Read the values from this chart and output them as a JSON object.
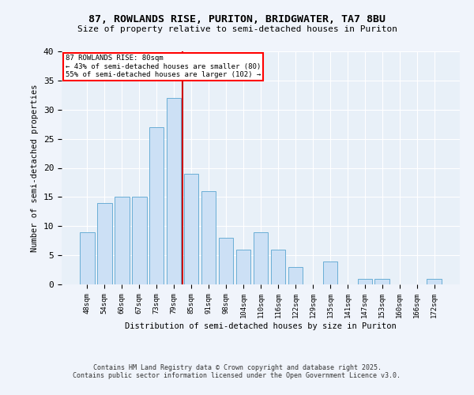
{
  "title1": "87, ROWLANDS RISE, PURITON, BRIDGWATER, TA7 8BU",
  "title2": "Size of property relative to semi-detached houses in Puriton",
  "xlabel": "Distribution of semi-detached houses by size in Puriton",
  "ylabel": "Number of semi-detached properties",
  "categories": [
    "48sqm",
    "54sqm",
    "60sqm",
    "67sqm",
    "73sqm",
    "79sqm",
    "85sqm",
    "91sqm",
    "98sqm",
    "104sqm",
    "110sqm",
    "116sqm",
    "122sqm",
    "129sqm",
    "135sqm",
    "141sqm",
    "147sqm",
    "153sqm",
    "160sqm",
    "166sqm",
    "172sqm"
  ],
  "values": [
    9,
    14,
    15,
    15,
    27,
    32,
    19,
    16,
    8,
    6,
    9,
    6,
    3,
    0,
    4,
    0,
    1,
    1,
    0,
    0,
    1
  ],
  "bar_color": "#cce0f5",
  "bar_edge_color": "#6aaed6",
  "vline_index": 5.5,
  "vline_color": "#cc0000",
  "annotation_title": "87 ROWLANDS RISE: 80sqm",
  "annotation_line1": "← 43% of semi-detached houses are smaller (80)",
  "annotation_line2": "55% of semi-detached houses are larger (102) →",
  "ylim": [
    0,
    40
  ],
  "yticks": [
    0,
    5,
    10,
    15,
    20,
    25,
    30,
    35,
    40
  ],
  "footnote1": "Contains HM Land Registry data © Crown copyright and database right 2025.",
  "footnote2": "Contains public sector information licensed under the Open Government Licence v3.0.",
  "fig_bg_color": "#f0f4fb",
  "plot_bg_color": "#e8f0f8"
}
